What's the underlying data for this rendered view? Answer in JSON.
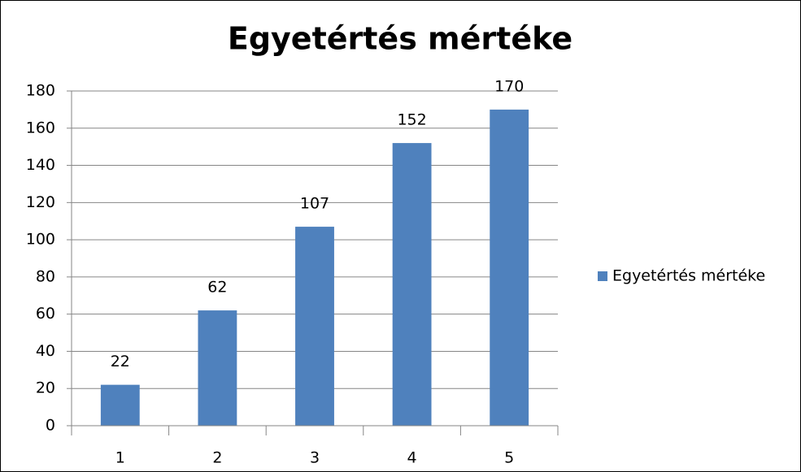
{
  "chart_data": {
    "type": "bar",
    "title": "Egyetértés mértéke",
    "categories": [
      "1",
      "2",
      "3",
      "4",
      "5"
    ],
    "series": [
      {
        "name": "Egyetértés mértéke",
        "color": "#4f81bd",
        "values": [
          22,
          62,
          107,
          152,
          170
        ]
      }
    ],
    "ylim": [
      0,
      180
    ],
    "yticks": [
      0,
      20,
      40,
      60,
      80,
      100,
      120,
      140,
      160,
      180
    ],
    "grid": true,
    "legend": "right",
    "data_labels": true
  }
}
